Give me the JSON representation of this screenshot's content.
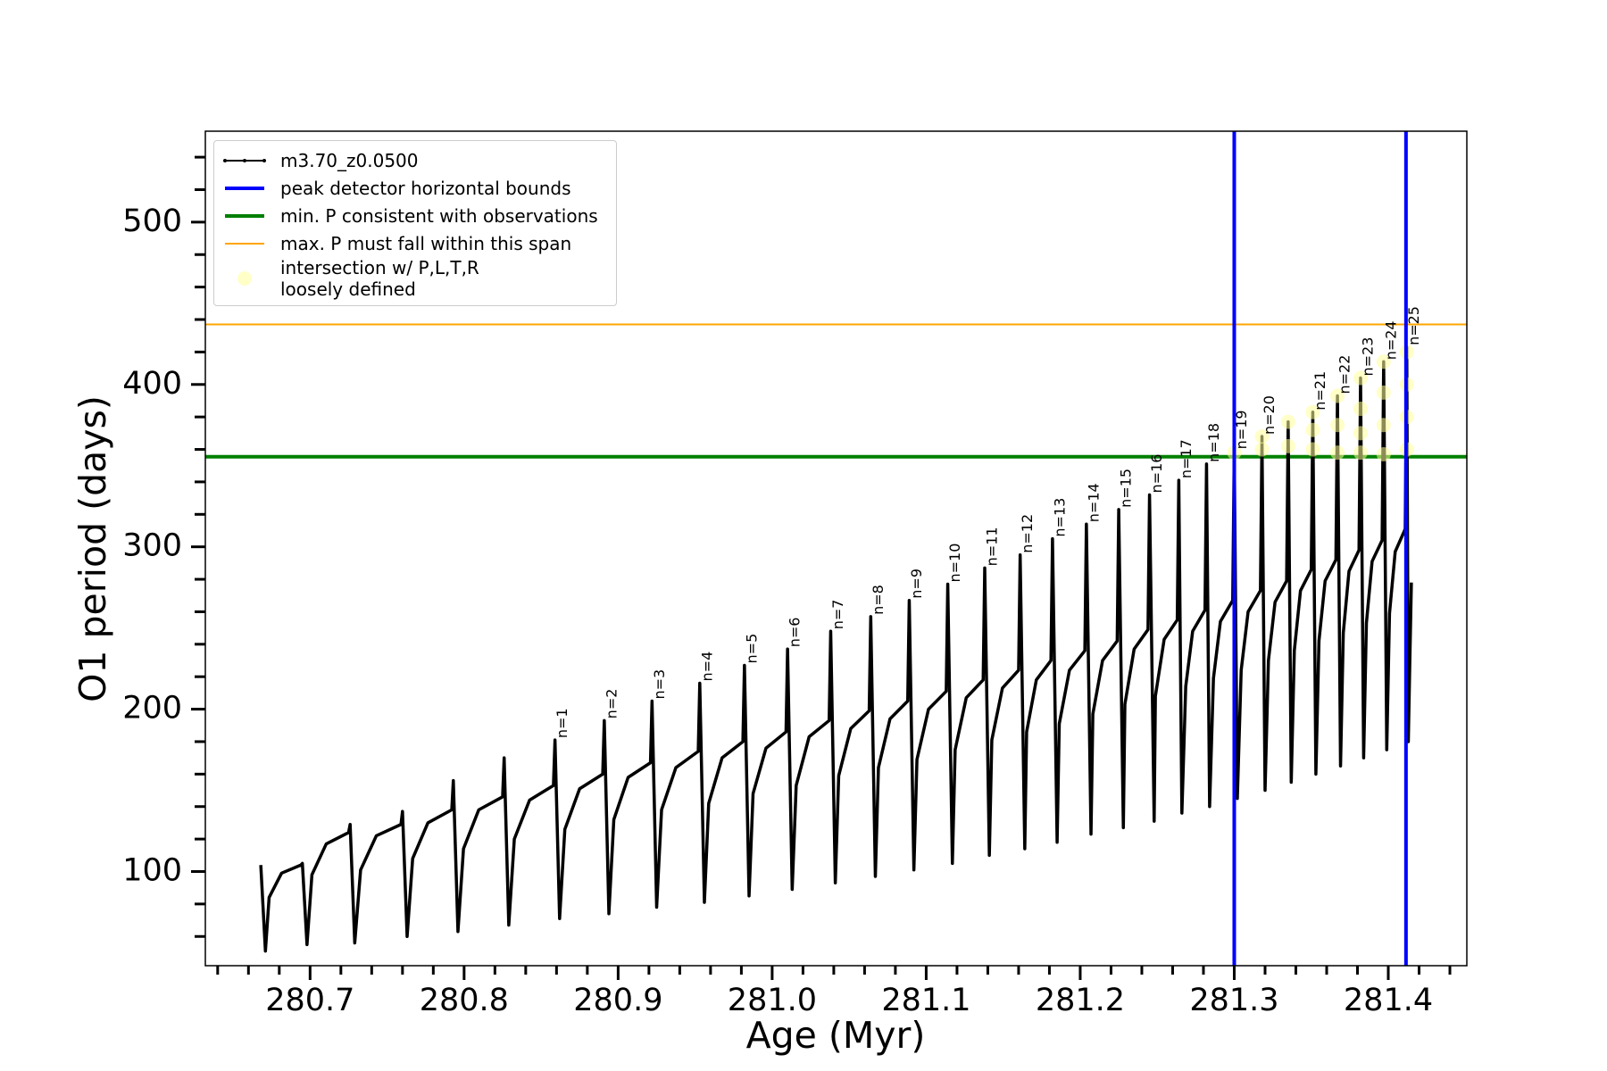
{
  "chart_data": {
    "type": "line",
    "xlabel": "Age (Myr)",
    "ylabel": "O1 period (days)",
    "xlim": [
      280.632,
      281.451
    ],
    "ylim": [
      42,
      556
    ],
    "xticks": [
      280.7,
      280.8,
      280.9,
      {
        "value": 281,
        "label": "281.0"
      },
      281.1,
      281.2,
      281.3,
      281.4
    ],
    "xminorticks": [
      280.64,
      280.66,
      280.68,
      280.72,
      280.74,
      280.76,
      280.78,
      280.82,
      280.84,
      280.86,
      280.88,
      280.92,
      280.94,
      280.96,
      280.98,
      281.02,
      281.04,
      281.06,
      281.08,
      281.12,
      281.14,
      281.16,
      281.18,
      281.22,
      281.24,
      281.26,
      281.28,
      281.32,
      281.34,
      281.36,
      281.38,
      281.42,
      281.44
    ],
    "yticks": [
      100,
      200,
      300,
      400,
      500
    ],
    "yminorticks": [
      60,
      80,
      120,
      140,
      160,
      180,
      220,
      240,
      260,
      280,
      320,
      340,
      360,
      380,
      420,
      440,
      460,
      480,
      520,
      540
    ],
    "legend": "upper left",
    "series": [
      {
        "name": "m3.70_z0.0500",
        "color": "#000000",
        "x": [
          280.668,
          280.671,
          280.6734,
          280.6815,
          280.694,
          280.695,
          280.698,
          280.7012,
          280.7105,
          280.725,
          280.726,
          280.729,
          280.7328,
          280.743,
          280.759,
          280.76,
          280.763,
          280.7666,
          280.7765,
          280.792,
          280.793,
          280.796,
          280.7996,
          280.8095,
          280.825,
          280.826,
          280.829,
          280.8326,
          280.8425,
          280.858,
          280.859,
          280.862,
          280.8654,
          280.875,
          280.89,
          280.891,
          280.894,
          280.8972,
          280.9065,
          280.921,
          280.922,
          280.925,
          280.9282,
          280.9375,
          280.952,
          280.953,
          280.956,
          280.9588,
          280.9675,
          280.981,
          280.982,
          280.985,
          280.9876,
          280.996,
          281.009,
          281.01,
          281.013,
          281.0156,
          281.024,
          281.037,
          281.038,
          281.041,
          281.0432,
          281.051,
          281.063,
          281.064,
          281.067,
          281.069,
          281.0765,
          281.088,
          281.089,
          281.092,
          281.094,
          281.1015,
          281.113,
          281.114,
          281.117,
          281.1188,
          281.126,
          281.137,
          281.138,
          281.141,
          281.1426,
          281.1495,
          281.16,
          281.161,
          281.164,
          281.1652,
          281.1715,
          281.181,
          281.182,
          281.185,
          281.1864,
          281.193,
          281.203,
          281.204,
          281.207,
          281.2082,
          281.2145,
          281.224,
          281.225,
          281.228,
          281.229,
          281.235,
          281.244,
          281.245,
          281.248,
          281.2488,
          281.2545,
          281.263,
          281.264,
          281.266,
          281.2685,
          281.273,
          281.281,
          281.282,
          281.284,
          281.2865,
          281.291,
          281.299,
          281.3,
          281.302,
          281.3045,
          281.309,
          281.317,
          281.318,
          281.32,
          281.3222,
          281.3265,
          281.334,
          281.335,
          281.337,
          281.339,
          281.343,
          281.35,
          281.351,
          281.353,
          281.355,
          281.359,
          281.366,
          281.367,
          281.369,
          281.3708,
          281.3745,
          281.381,
          281.382,
          281.384,
          281.3858,
          281.3895,
          281.396,
          281.397,
          281.399,
          281.4008,
          281.4045,
          281.411,
          281.412,
          281.413,
          281.414,
          281.415
        ],
        "values": [
          104,
          51,
          84,
          99,
          104,
          105,
          55,
          98,
          117,
          124,
          129,
          56,
          101,
          122,
          129,
          137,
          60,
          108,
          130,
          138,
          156,
          63,
          114,
          138,
          146,
          170,
          67,
          120,
          144,
          153,
          181,
          71,
          126,
          151,
          160,
          193,
          74,
          132,
          158,
          167,
          205,
          78,
          138,
          164,
          174,
          216,
          81,
          142,
          170,
          180,
          227,
          85,
          148,
          176,
          186,
          237,
          89,
          153,
          183,
          193,
          248,
          93,
          159,
          188,
          199,
          257,
          97,
          164,
          194,
          205,
          267,
          101,
          169,
          200,
          211,
          277,
          105,
          175,
          207,
          218,
          287,
          110,
          181,
          213,
          224,
          295,
          114,
          186,
          218,
          230,
          305,
          118,
          191,
          224,
          236,
          314,
          123,
          197,
          230,
          242,
          323,
          127,
          203,
          237,
          249,
          332,
          131,
          208,
          243,
          255,
          341,
          136,
          214,
          248,
          261,
          351,
          140,
          219,
          254,
          267,
          359,
          145,
          224,
          260,
          273,
          368,
          150,
          230,
          266,
          279,
          377,
          155,
          236,
          273,
          286,
          383,
          160,
          242,
          279,
          292,
          393,
          165,
          247,
          285,
          298,
          404,
          170,
          253,
          291,
          304,
          414,
          175,
          259,
          297,
          311,
          423,
          180,
          230,
          278
        ]
      }
    ],
    "vlines": {
      "name": "peak detector horizontal bounds",
      "color": "#0000ff",
      "values": [
        281.3,
        281.4115
      ]
    },
    "hlines": [
      {
        "name": "min. P consistent with observations",
        "color": "#008000",
        "value": 355.5
      },
      {
        "name": "max. P must fall within this span",
        "color": "#ffa500",
        "value": 437
      }
    ],
    "scatter": {
      "name": "intersection w/ P,L,T,R\nloosely defined",
      "color": "#ffff99",
      "x": [
        281.3,
        281.318,
        281.318,
        281.335,
        281.335,
        281.351,
        281.351,
        281.351,
        281.367,
        281.367,
        281.367,
        281.382,
        281.382,
        281.382,
        281.382,
        281.397,
        281.397,
        281.397,
        281.397,
        281.412,
        281.412,
        281.412,
        281.412
      ],
      "values": [
        358,
        360,
        368,
        362,
        377,
        360,
        372,
        383,
        358,
        375,
        393,
        358,
        370,
        385,
        404,
        357,
        375,
        395,
        414,
        360,
        380,
        400,
        420
      ]
    },
    "annotations": [
      {
        "text": "n=1",
        "x": 280.859,
        "y": 181
      },
      {
        "text": "n=2",
        "x": 280.891,
        "y": 193
      },
      {
        "text": "n=3",
        "x": 280.922,
        "y": 205
      },
      {
        "text": "n=4",
        "x": 280.953,
        "y": 216
      },
      {
        "text": "n=5",
        "x": 280.982,
        "y": 227
      },
      {
        "text": "n=6",
        "x": 281.01,
        "y": 237
      },
      {
        "text": "n=7",
        "x": 281.038,
        "y": 248
      },
      {
        "text": "n=8",
        "x": 281.064,
        "y": 257
      },
      {
        "text": "n=9",
        "x": 281.089,
        "y": 267
      },
      {
        "text": "n=10",
        "x": 281.114,
        "y": 277
      },
      {
        "text": "n=11",
        "x": 281.138,
        "y": 287
      },
      {
        "text": "n=12",
        "x": 281.161,
        "y": 295
      },
      {
        "text": "n=13",
        "x": 281.182,
        "y": 305
      },
      {
        "text": "n=14",
        "x": 281.204,
        "y": 314
      },
      {
        "text": "n=15",
        "x": 281.225,
        "y": 323
      },
      {
        "text": "n=16",
        "x": 281.245,
        "y": 332
      },
      {
        "text": "n=17",
        "x": 281.264,
        "y": 341
      },
      {
        "text": "n=18",
        "x": 281.282,
        "y": 351
      },
      {
        "text": "n=19",
        "x": 281.3,
        "y": 359
      },
      {
        "text": "n=20",
        "x": 281.318,
        "y": 368
      },
      {
        "text": "n=21",
        "x": 281.351,
        "y": 383
      },
      {
        "text": "n=22",
        "x": 281.367,
        "y": 393
      },
      {
        "text": "n=23",
        "x": 281.382,
        "y": 404
      },
      {
        "text": "n=24",
        "x": 281.397,
        "y": 414
      },
      {
        "text": "n=25",
        "x": 281.412,
        "y": 423
      }
    ]
  }
}
